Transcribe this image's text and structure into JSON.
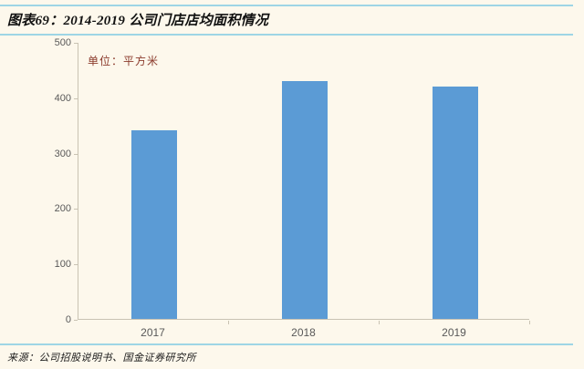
{
  "header": {
    "title": "图表69：2014-2019 公司门店店均面积情况"
  },
  "chart": {
    "unit_label": "单位：平方米"
  },
  "footer": {
    "source": "来源：公司招股说明书、国金证券研究所"
  },
  "colors": {
    "background": "#FDF8EC",
    "bar": "#5B9BD5",
    "accent_line": "#9ED5E5",
    "unit_label_text": "#8B3A2B",
    "axis_line": "#C9C3B3",
    "tick_text": "#595959"
  },
  "chart_data": {
    "type": "bar",
    "title": "2014-2019 公司门店店均面积情况",
    "categories": [
      "2017",
      "2018",
      "2019"
    ],
    "values": [
      340,
      430,
      420
    ],
    "unit": "平方米",
    "xlabel": "",
    "ylabel": "单位：平方米",
    "ylim": [
      0,
      500
    ],
    "yticks": [
      0,
      100,
      200,
      300,
      400,
      500
    ],
    "grid": false,
    "legend": false
  }
}
